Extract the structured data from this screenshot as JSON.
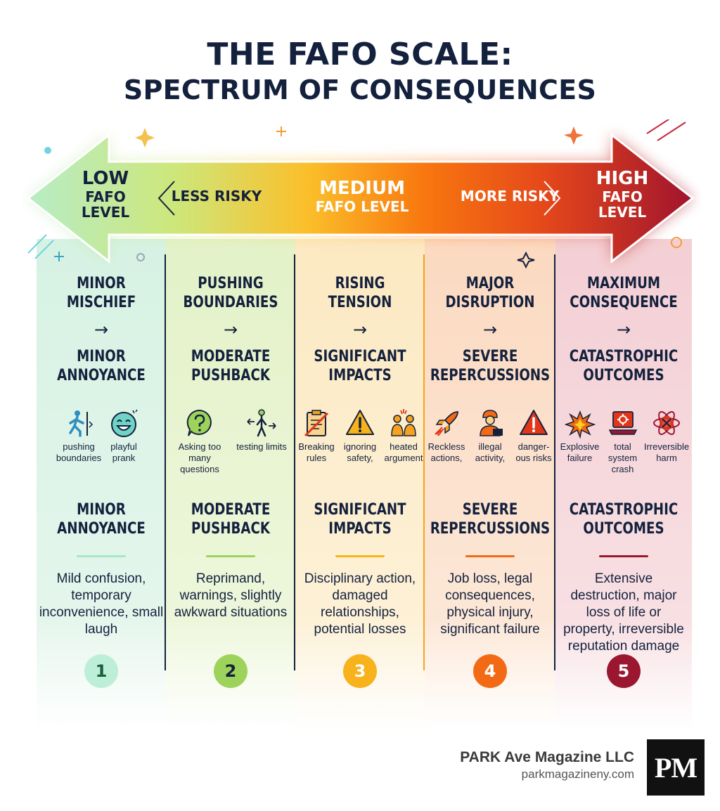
{
  "title": {
    "line1": "THE FAFO SCALE:",
    "line2": "SPECTRUM OF CONSEQUENCES"
  },
  "arrow": {
    "low": {
      "big": "LOW",
      "line2": "FAFO",
      "line3": "LEVEL"
    },
    "less_risky": "LESS RISKY",
    "medium": {
      "big": "MEDIUM",
      "small": "FAFO LEVEL"
    },
    "more_risky": "MORE RISKY",
    "high": {
      "big": "HIGH",
      "line2": "FAFO",
      "line3": "LEVEL"
    }
  },
  "columns": [
    {
      "level": "1",
      "accent": "#a8e6c8",
      "number_color": "#1b5e3b",
      "head": "MINOR MISCHIEF",
      "arrow": "→",
      "subhead": "MINOR ANNOYANCE",
      "icons": [
        {
          "icon": "person-walking-icon",
          "caption": "pushing boundaries"
        },
        {
          "icon": "laughing-face-icon",
          "caption": "playful prank"
        }
      ],
      "outcome": "MINOR ANNOYANCE",
      "description": "Mild confusion, temporary inconvenience, small laugh"
    },
    {
      "level": "2",
      "accent": "#9dd35a",
      "number_color": "#14213d",
      "head": "PUSHING BOUNDARIES",
      "arrow": "→",
      "subhead": "MODERATE PUSHBACK",
      "icons": [
        {
          "icon": "question-bubble-icon",
          "caption": "Asking too many questions"
        },
        {
          "icon": "person-arrows-icon",
          "caption": "testing limits"
        }
      ],
      "outcome": "MODERATE PUSHBACK",
      "description": "Reprimand, warnings, slightly awkward situations"
    },
    {
      "level": "3",
      "accent": "#f7b21c",
      "number_color": "#ffffff",
      "head": "RISING TENSION",
      "arrow": "→",
      "subhead": "SIGNIFICANT IMPACTS",
      "icons": [
        {
          "icon": "crossed-clipboard-icon",
          "caption": "Breaking rules"
        },
        {
          "icon": "warning-triangle-icon",
          "caption": "ignoring safety,"
        },
        {
          "icon": "arguing-people-icon",
          "caption": "heated argument"
        }
      ],
      "outcome": "SIGNIFICANT IMPACTS",
      "description": "Disciplinary action, damaged relationships, potential losses"
    },
    {
      "level": "4",
      "accent": "#f26a16",
      "number_color": "#ffffff",
      "head": "MAJOR DISRUPTION",
      "arrow": "→",
      "subhead": "SEVERE REPERCUSSIONS",
      "icons": [
        {
          "icon": "rocket-icon",
          "caption": "Reckless actions,"
        },
        {
          "icon": "worker-briefcase-icon",
          "caption": "illegal activity,"
        },
        {
          "icon": "danger-triangle-icon",
          "caption": "danger- ous risks"
        }
      ],
      "outcome": "SEVERE REPERCUSSIONS",
      "description": "Job loss, legal consequences, physical injury, significant failure"
    },
    {
      "level": "5",
      "accent": "#9b1730",
      "number_color": "#ffffff",
      "head": "MAXIMUM CONSEQUENCE",
      "arrow": "→",
      "subhead": "CATASTROPHIC OUTCOMES",
      "icons": [
        {
          "icon": "explosion-icon",
          "caption": "Explosive failure"
        },
        {
          "icon": "broken-laptop-icon",
          "caption": "total system crash"
        },
        {
          "icon": "atom-crossed-icon",
          "caption": "Irreversible harm"
        }
      ],
      "outcome": "CATASTROPHIC OUTCOMES",
      "description": "Extensive destruction, major loss of life or property, irreversible reputation damage"
    }
  ],
  "brand": {
    "name": "PARK Ave Magazine LLC",
    "url": "parkmagazineny.com",
    "logo": "PM"
  }
}
